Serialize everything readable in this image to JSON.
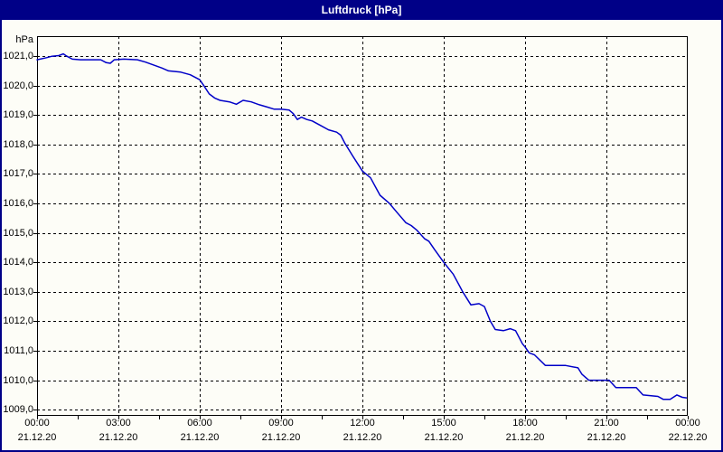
{
  "window": {
    "title": "Luftdruck [hPa]"
  },
  "colors": {
    "titlebar": "#000087",
    "frame": "#000087",
    "background": "#FDFDF7",
    "grid": "#000000",
    "axis": "#000000",
    "text": "#000000",
    "curve": "#0000C8"
  },
  "chart_data": {
    "type": "line",
    "title": "Luftdruck [hPa]",
    "xlabel": "",
    "ylabel": "hPa",
    "grid": "dashed",
    "legend": "none",
    "y_axis": {
      "min": 1008.79,
      "max": 1021.68,
      "tick_step": 1.0,
      "ticks": [
        {
          "value": 1021.0,
          "label": "1021,0"
        },
        {
          "value": 1020.0,
          "label": "1020,0"
        },
        {
          "value": 1019.0,
          "label": "1019,0"
        },
        {
          "value": 1018.0,
          "label": "1018,0"
        },
        {
          "value": 1017.0,
          "label": "1017,0"
        },
        {
          "value": 1016.0,
          "label": "1016,0"
        },
        {
          "value": 1015.0,
          "label": "1015,0"
        },
        {
          "value": 1014.0,
          "label": "1014,0"
        },
        {
          "value": 1013.0,
          "label": "1013,0"
        },
        {
          "value": 1012.0,
          "label": "1012,0"
        },
        {
          "value": 1011.0,
          "label": "1011,0"
        },
        {
          "value": 1010.0,
          "label": "1010,0"
        },
        {
          "value": 1009.0,
          "label": "1009,0"
        }
      ]
    },
    "x_axis": {
      "span_hours": 24,
      "minor_tick_interval_hours": 1.5,
      "ticks": [
        {
          "hour": 0,
          "time": "00:00",
          "date": "21.12.20"
        },
        {
          "hour": 3,
          "time": "03:00",
          "date": "21.12.20"
        },
        {
          "hour": 6,
          "time": "06:00",
          "date": "21.12.20"
        },
        {
          "hour": 9,
          "time": "09:00",
          "date": "21.12.20"
        },
        {
          "hour": 12,
          "time": "12:00",
          "date": "21.12.20"
        },
        {
          "hour": 15,
          "time": "15:00",
          "date": "21.12.20"
        },
        {
          "hour": 18,
          "time": "18:00",
          "date": "21.12.20"
        },
        {
          "hour": 21,
          "time": "21:00",
          "date": "21.12.20"
        },
        {
          "hour": 24,
          "time": "00:00",
          "date": "22.12.20"
        }
      ]
    },
    "series": [
      {
        "name": "Luftdruck",
        "unit": "hPa",
        "color": "#0000C8",
        "points_hours_vs_hpa": [
          [
            0.0,
            1020.88
          ],
          [
            0.35,
            1020.95
          ],
          [
            0.55,
            1021.0
          ],
          [
            0.8,
            1021.02
          ],
          [
            0.97,
            1021.08
          ],
          [
            1.1,
            1021.0
          ],
          [
            1.3,
            1020.9
          ],
          [
            1.6,
            1020.88
          ],
          [
            2.35,
            1020.88
          ],
          [
            2.55,
            1020.78
          ],
          [
            2.7,
            1020.76
          ],
          [
            2.85,
            1020.88
          ],
          [
            3.2,
            1020.9
          ],
          [
            3.7,
            1020.88
          ],
          [
            4.0,
            1020.8
          ],
          [
            4.3,
            1020.7
          ],
          [
            4.6,
            1020.6
          ],
          [
            4.85,
            1020.5
          ],
          [
            5.3,
            1020.46
          ],
          [
            5.65,
            1020.37
          ],
          [
            6.0,
            1020.2
          ],
          [
            6.15,
            1020.0
          ],
          [
            6.35,
            1019.72
          ],
          [
            6.55,
            1019.58
          ],
          [
            6.75,
            1019.5
          ],
          [
            7.1,
            1019.45
          ],
          [
            7.35,
            1019.37
          ],
          [
            7.6,
            1019.5
          ],
          [
            7.9,
            1019.45
          ],
          [
            8.2,
            1019.35
          ],
          [
            8.5,
            1019.27
          ],
          [
            8.75,
            1019.2
          ],
          [
            9.0,
            1019.2
          ],
          [
            9.3,
            1019.17
          ],
          [
            9.45,
            1019.05
          ],
          [
            9.6,
            1018.85
          ],
          [
            9.75,
            1018.93
          ],
          [
            9.95,
            1018.85
          ],
          [
            10.15,
            1018.8
          ],
          [
            10.45,
            1018.65
          ],
          [
            10.75,
            1018.5
          ],
          [
            11.05,
            1018.42
          ],
          [
            11.2,
            1018.32
          ],
          [
            11.35,
            1018.05
          ],
          [
            11.65,
            1017.6
          ],
          [
            12.0,
            1017.1
          ],
          [
            12.3,
            1016.87
          ],
          [
            12.65,
            1016.28
          ],
          [
            13.0,
            1016.0
          ],
          [
            13.3,
            1015.67
          ],
          [
            13.6,
            1015.35
          ],
          [
            13.8,
            1015.25
          ],
          [
            14.0,
            1015.1
          ],
          [
            14.3,
            1014.8
          ],
          [
            14.45,
            1014.72
          ],
          [
            14.65,
            1014.45
          ],
          [
            15.0,
            1014.0
          ],
          [
            15.35,
            1013.6
          ],
          [
            15.7,
            1013.0
          ],
          [
            16.0,
            1012.56
          ],
          [
            16.3,
            1012.6
          ],
          [
            16.5,
            1012.5
          ],
          [
            16.72,
            1012.0
          ],
          [
            16.9,
            1011.72
          ],
          [
            17.2,
            1011.68
          ],
          [
            17.45,
            1011.75
          ],
          [
            17.65,
            1011.68
          ],
          [
            17.9,
            1011.24
          ],
          [
            18.0,
            1011.13
          ],
          [
            18.15,
            1010.93
          ],
          [
            18.35,
            1010.86
          ],
          [
            18.75,
            1010.5
          ],
          [
            19.5,
            1010.5
          ],
          [
            19.95,
            1010.42
          ],
          [
            20.1,
            1010.2
          ],
          [
            20.35,
            1010.0
          ],
          [
            21.1,
            1010.0
          ],
          [
            21.35,
            1009.75
          ],
          [
            22.1,
            1009.75
          ],
          [
            22.35,
            1009.5
          ],
          [
            22.9,
            1009.45
          ],
          [
            23.1,
            1009.35
          ],
          [
            23.35,
            1009.35
          ],
          [
            23.6,
            1009.5
          ],
          [
            23.8,
            1009.42
          ],
          [
            23.95,
            1009.4
          ]
        ]
      }
    ]
  }
}
